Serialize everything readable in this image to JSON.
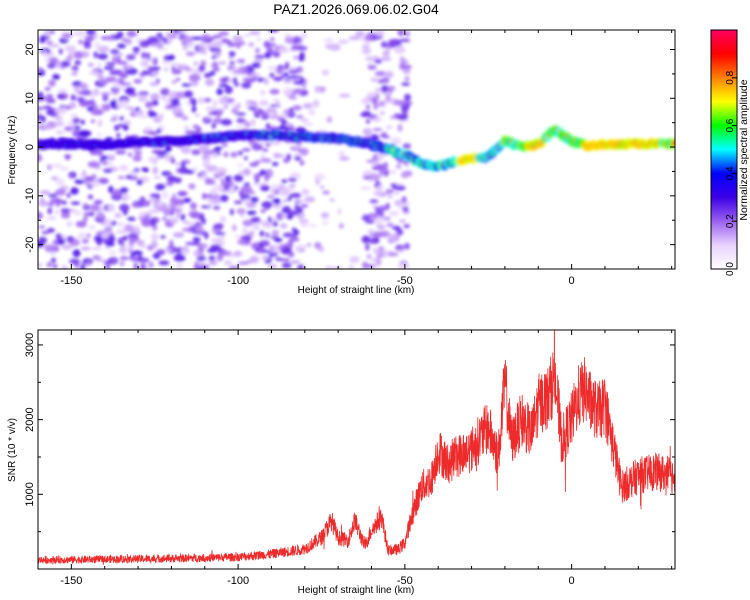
{
  "page_title": "PAZ1.2026.069.06.02.G04",
  "chart_data": [
    {
      "type": "heatmap",
      "title": "PAZ1.2026.069.06.02.G04",
      "xlabel": "Height of straight line (km)",
      "ylabel": "Frequency (Hz)",
      "xlim": [
        -160,
        31
      ],
      "ylim": [
        -25,
        24
      ],
      "xticks": [
        -150,
        -100,
        -50,
        0
      ],
      "yticks": [
        20,
        10,
        0,
        -10,
        -20
      ],
      "ridge_x": [
        -160,
        -140,
        -120,
        -100,
        -90,
        -80,
        -70,
        -60,
        -55,
        -50,
        -45,
        -40,
        -35,
        -30,
        -25,
        -20,
        -15,
        -10,
        -5,
        0,
        5,
        10,
        20,
        31
      ],
      "ridge_y": [
        0.7,
        0.5,
        1.2,
        2.3,
        2.5,
        2.1,
        1.8,
        0.6,
        -0.5,
        -1.5,
        -3.5,
        -4.0,
        -3.0,
        -2.3,
        -2.0,
        1.2,
        0.0,
        0.5,
        3.6,
        1.2,
        0.3,
        0.5,
        0.6,
        0.7
      ],
      "colorbar": {
        "label": "Normalized spectral amplitude",
        "range": [
          0.0,
          1.0
        ],
        "ticks": [
          "0.0",
          "0.2",
          "0.4",
          "0.6",
          "0.8"
        ],
        "tick_values": [
          0.0,
          0.2,
          0.4,
          0.6,
          0.8
        ],
        "colors": [
          "#ffffff",
          "#e8d2ff",
          "#9a60f0",
          "#3c00e6",
          "#0000ff",
          "#00ffff",
          "#00ff00",
          "#ffff00",
          "#ff8000",
          "#ff0000",
          "#ff0060"
        ]
      }
    },
    {
      "type": "line",
      "xlabel": "Height of straight line (km)",
      "ylabel": "SNR (10 * v/v)",
      "xlim": [
        -160,
        31
      ],
      "ylim": [
        0,
        3200
      ],
      "xticks": [
        -150,
        -100,
        -50,
        0
      ],
      "yticks": [
        1000,
        2000,
        3000
      ],
      "color": "#ee2a2a",
      "series": [
        {
          "name": "SNR",
          "x": [
            -160,
            -140,
            -120,
            -100,
            -90,
            -80,
            -75,
            -72,
            -70,
            -67,
            -65,
            -62,
            -60,
            -57,
            -55,
            -52,
            -50,
            -48,
            -45,
            -42,
            -40,
            -37,
            -35,
            -30,
            -25,
            -22,
            -20,
            -18,
            -15,
            -12,
            -10,
            -7,
            -5,
            -3,
            0,
            2,
            4,
            6,
            8,
            10,
            15,
            20,
            25,
            31
          ],
          "y": [
            120,
            130,
            140,
            160,
            200,
            270,
            420,
            650,
            420,
            380,
            650,
            300,
            520,
            700,
            250,
            260,
            350,
            700,
            1100,
            1200,
            1600,
            1400,
            1500,
            1600,
            1900,
            1500,
            2500,
            1700,
            2000,
            1800,
            2200,
            2300,
            2600,
            1700,
            2000,
            2300,
            2400,
            2200,
            2100,
            2200,
            1100,
            1250,
            1300,
            1250
          ]
        }
      ]
    }
  ]
}
